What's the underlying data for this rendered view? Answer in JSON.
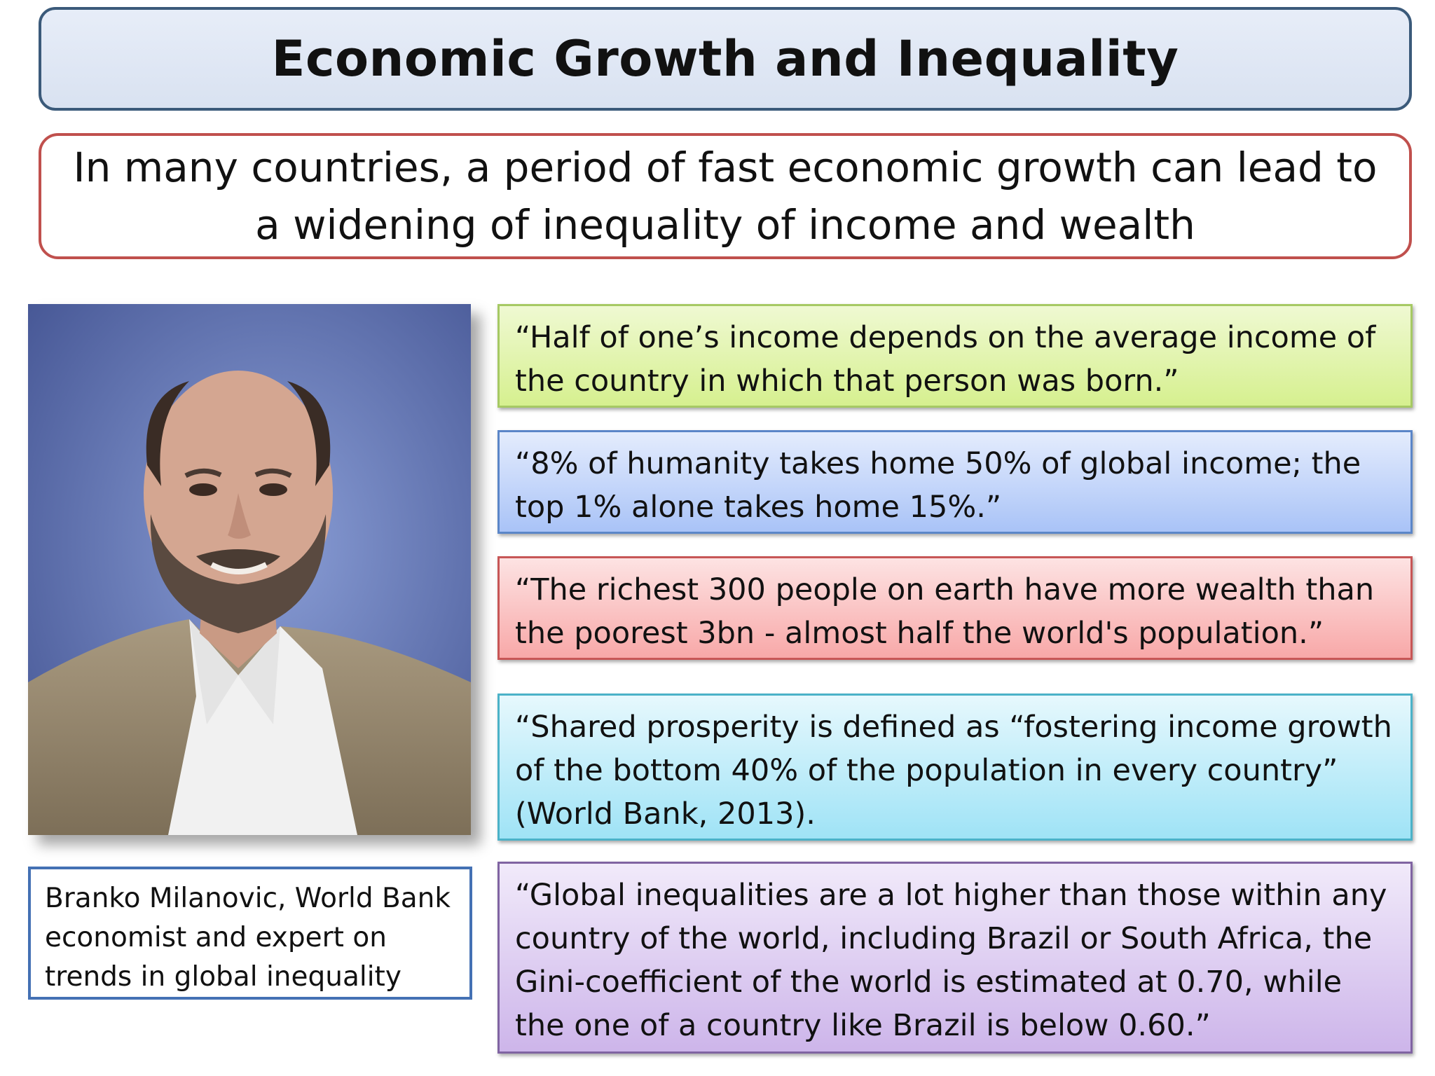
{
  "slide": {
    "title": "Economic Growth and Inequality",
    "intro": "In many countries, a period of fast economic growth can lead to a widening of inequality of income and wealth"
  },
  "profile": {
    "caption": "Branko Milanovic, World Bank economist and expert on trends in global inequality"
  },
  "quotes": [
    {
      "text": "“Half of one’s income depends on the average income of the country in which that person was born.”"
    },
    {
      "text": "“8% of humanity takes home 50% of global income; the top 1% alone takes home 15%.”"
    },
    {
      "text": "“The richest 300 people on earth have more wealth than the poorest 3bn - almost half the world's population.”"
    },
    {
      "text": "“Shared prosperity is defined as “fostering income growth of the bottom 40% of the population in every country” (World Bank, 2013)."
    },
    {
      "text": "“Global inequalities are a lot higher than those within any country of the world, including Brazil or South Africa, the Gini-coefficient  of the world is estimated at 0.70, while the one of a country like Brazil is below 0.60.”"
    }
  ],
  "colors": {
    "title_border": "#3b5a7a",
    "intro_border": "#c0504d",
    "caption_border": "#4471b4",
    "quote_green": "#d6f08f",
    "quote_blue": "#a9c3f7",
    "quote_red": "#f8a8a8",
    "quote_cyan": "#9fe3f6",
    "quote_purple": "#cdb5ea"
  }
}
